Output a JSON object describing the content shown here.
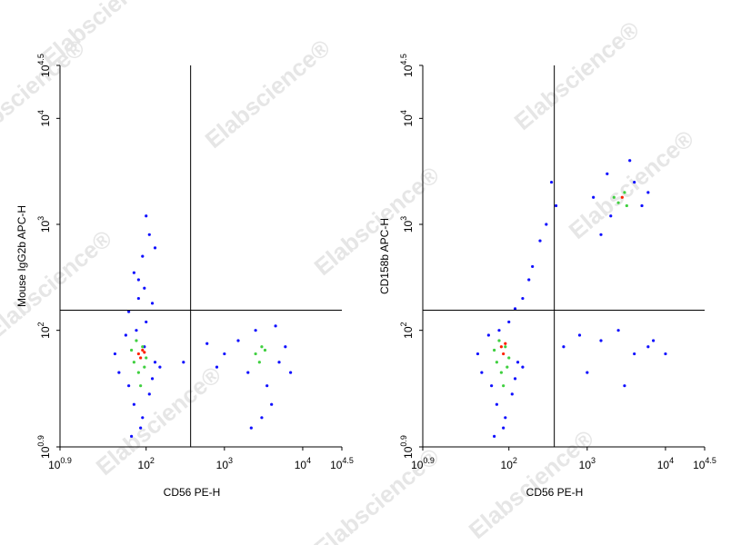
{
  "watermark": "Elabscience®",
  "chart_data": [
    {
      "type": "scatter",
      "xlabel": "CD56 PE-H",
      "ylabel": "Mouse IgG2b APC-H",
      "log_x": true,
      "log_y": true,
      "xlim": [
        7.943,
        31623
      ],
      "ylim": [
        7.943,
        31623
      ],
      "xticks": [
        {
          "value": 7.943,
          "label": "10",
          "exponent": "0.9"
        },
        {
          "value": 100,
          "label": "10",
          "exponent": "2"
        },
        {
          "value": 1000,
          "label": "10",
          "exponent": "3"
        },
        {
          "value": 10000,
          "label": "10",
          "exponent": "4"
        },
        {
          "value": 31623,
          "label": "10",
          "exponent": "4.5"
        }
      ],
      "yticks": [
        {
          "value": 7.943,
          "label": "10",
          "exponent": "0.9"
        },
        {
          "value": 100,
          "label": "10",
          "exponent": "2"
        },
        {
          "value": 1000,
          "label": "10",
          "exponent": "3"
        },
        {
          "value": 10000,
          "label": "10",
          "exponent": "4"
        },
        {
          "value": 31623,
          "label": "10",
          "exponent": "4.5"
        }
      ],
      "gates": {
        "x": 370,
        "y": 155
      },
      "series": [
        {
          "color": "#1010ff",
          "x": [
            45,
            60,
            70,
            90,
            110,
            130,
            55,
            75,
            100,
            85,
            65,
            95,
            120,
            40,
            150,
            80,
            70,
            90,
            2000,
            3500,
            5000,
            1500,
            2500,
            4000,
            6000,
            1000,
            800,
            600,
            3000,
            7000,
            2200,
            4500,
            95,
            110,
            80,
            120,
            100,
            130,
            60,
            300
          ],
          "y": [
            40,
            30,
            20,
            15,
            25,
            50,
            90,
            100,
            120,
            12,
            10,
            70,
            35,
            60,
            45,
            200,
            350,
            500,
            40,
            30,
            50,
            80,
            100,
            20,
            70,
            60,
            45,
            75,
            15,
            40,
            12,
            110,
            250,
            800,
            300,
            180,
            1200,
            600,
            150,
            50
          ]
        },
        {
          "color": "#40d040",
          "x": [
            70,
            90,
            80,
            100,
            75,
            85,
            95,
            65,
            2500,
            3000,
            2800,
            3300
          ],
          "y": [
            50,
            70,
            40,
            55,
            80,
            30,
            45,
            65,
            60,
            70,
            50,
            65
          ]
        },
        {
          "color": "#ff2000",
          "x": [
            80,
            90,
            85,
            95
          ],
          "y": [
            60,
            65,
            55,
            62
          ]
        }
      ]
    },
    {
      "type": "scatter",
      "xlabel": "CD56 PE-H",
      "ylabel": "CD158b APC-H",
      "log_x": true,
      "log_y": true,
      "xlim": [
        7.943,
        31623
      ],
      "ylim": [
        7.943,
        31623
      ],
      "xticks": [
        {
          "value": 7.943,
          "label": "10",
          "exponent": "0.9"
        },
        {
          "value": 100,
          "label": "10",
          "exponent": "2"
        },
        {
          "value": 1000,
          "label": "10",
          "exponent": "3"
        },
        {
          "value": 10000,
          "label": "10",
          "exponent": "4"
        },
        {
          "value": 31623,
          "label": "10",
          "exponent": "4.5"
        }
      ],
      "yticks": [
        {
          "value": 7.943,
          "label": "10",
          "exponent": "0.9"
        },
        {
          "value": 100,
          "label": "10",
          "exponent": "2"
        },
        {
          "value": 1000,
          "label": "10",
          "exponent": "3"
        },
        {
          "value": 10000,
          "label": "10",
          "exponent": "4"
        },
        {
          "value": 31623,
          "label": "10",
          "exponent": "4.5"
        }
      ],
      "gates": {
        "x": 380,
        "y": 155
      },
      "series": [
        {
          "color": "#1010ff",
          "x": [
            45,
            60,
            70,
            90,
            110,
            130,
            55,
            75,
            100,
            85,
            65,
            120,
            40,
            150,
            1500,
            2500,
            4000,
            6000,
            1000,
            800,
            3000,
            7000,
            500,
            10000,
            2000,
            4000,
            1800,
            5000,
            1500,
            3500,
            6000,
            1200,
            150,
            200,
            250,
            300,
            400,
            180,
            350,
            120
          ],
          "y": [
            40,
            30,
            20,
            15,
            25,
            50,
            90,
            100,
            120,
            12,
            10,
            35,
            60,
            45,
            80,
            100,
            60,
            70,
            40,
            90,
            30,
            80,
            70,
            60,
            1200,
            2500,
            3000,
            1500,
            800,
            4000,
            2000,
            1800,
            200,
            400,
            700,
            1000,
            1500,
            300,
            2500,
            160
          ]
        },
        {
          "color": "#40d040",
          "x": [
            70,
            90,
            80,
            100,
            75,
            85,
            95,
            65,
            2500,
            3000,
            2200,
            3200
          ],
          "y": [
            50,
            70,
            40,
            55,
            80,
            30,
            45,
            65,
            1600,
            2000,
            1800,
            1500
          ]
        },
        {
          "color": "#ff2000",
          "x": [
            80,
            90,
            85,
            2800
          ],
          "y": [
            70,
            75,
            60,
            1800
          ]
        }
      ]
    }
  ]
}
